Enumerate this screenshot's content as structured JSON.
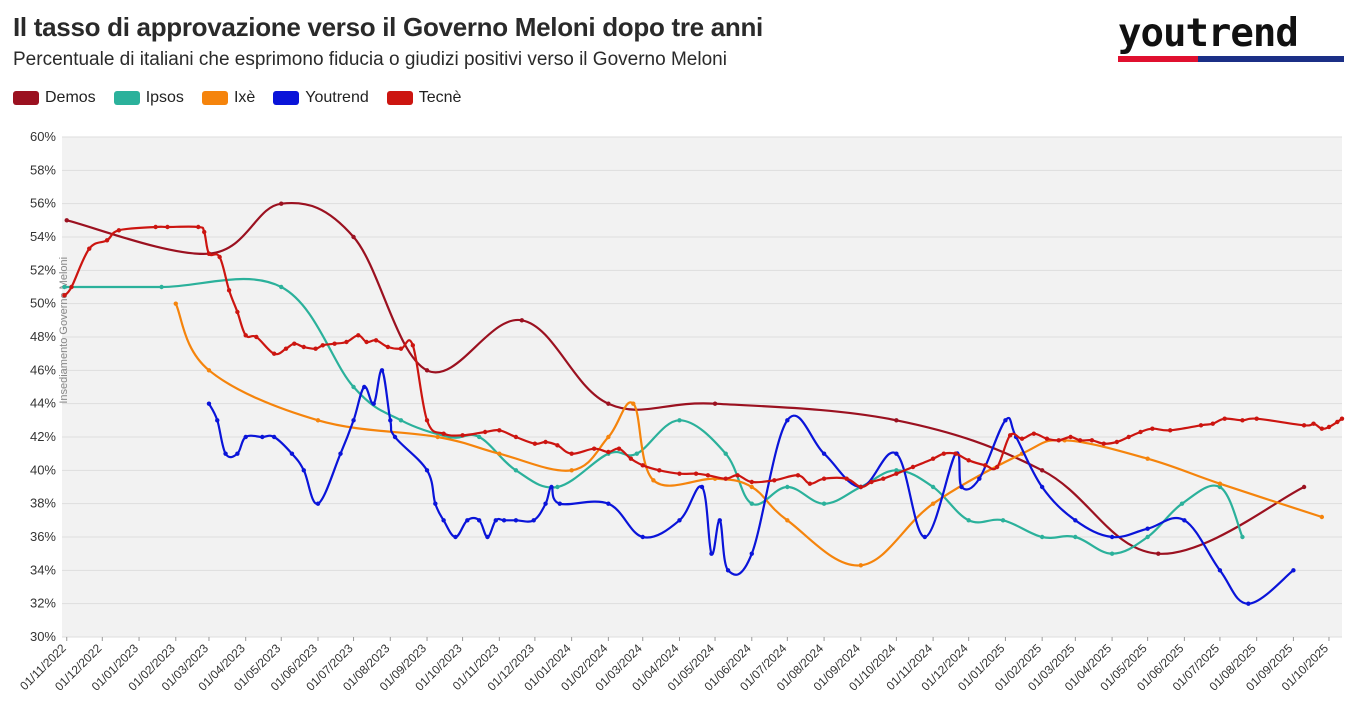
{
  "header": {
    "title": "Il tasso di approvazione verso il Governo Meloni dopo tre anni",
    "subtitle": "Percentuale di italiani che esprimono fiducia o giudizi positivi verso il Governo Meloni",
    "brand": "youtrend"
  },
  "colors": {
    "Demos": "#9b1120",
    "Ipsos": "#2bb19b",
    "Ixè": "#f5840c",
    "Youtrend": "#0a14d9",
    "Tecnè": "#cc1510",
    "brand_red": "#e0102f",
    "brand_blue": "#1b2f86"
  },
  "chart_data": {
    "type": "line",
    "title": "Il tasso di approvazione verso il Governo Meloni dopo tre anni",
    "subtitle": "Percentuale di italiani che esprimono fiducia o giudizi positivi verso il Governo Meloni",
    "ylim": [
      30,
      60
    ],
    "y_ticks": [
      "30%",
      "32%",
      "34%",
      "36%",
      "38%",
      "40%",
      "42%",
      "44%",
      "46%",
      "48%",
      "50%",
      "52%",
      "54%",
      "56%",
      "58%",
      "60%"
    ],
    "x_ticks": [
      "01/11/2022",
      "01/12/2022",
      "01/01/2023",
      "01/02/2023",
      "01/03/2023",
      "01/04/2023",
      "01/05/2023",
      "01/06/2023",
      "01/07/2023",
      "01/08/2023",
      "01/09/2023",
      "01/10/2023",
      "01/11/2023",
      "01/12/2023",
      "01/01/2024",
      "01/02/2024",
      "01/03/2024",
      "01/04/2024",
      "01/05/2024",
      "01/06/2024",
      "01/07/2024",
      "01/08/2024",
      "01/09/2024",
      "01/10/2024",
      "01/11/2024",
      "01/12/2024",
      "01/01/2025",
      "01/02/2025",
      "01/03/2025",
      "01/04/2025",
      "01/05/2025",
      "01/06/2025",
      "01/07/2025",
      "01/08/2025",
      "01/09/2025",
      "01/10/2025"
    ],
    "xlim": [
      "2022-10-28",
      "2025-10-12"
    ],
    "grid": true,
    "legend": "top-left",
    "annotation": {
      "date": "2022-10-22",
      "label": "Insediamento Governo Meloni"
    },
    "series": [
      {
        "name": "Demos",
        "points": [
          [
            "2022-11-01",
            55
          ],
          [
            "2023-03-01",
            53
          ],
          [
            "2023-05-01",
            56
          ],
          [
            "2023-07-01",
            54
          ],
          [
            "2023-09-01",
            46
          ],
          [
            "2023-11-20",
            49
          ],
          [
            "2024-02-01",
            44
          ],
          [
            "2024-05-01",
            44
          ],
          [
            "2024-10-01",
            43
          ],
          [
            "2025-02-01",
            40
          ],
          [
            "2025-05-10",
            35
          ],
          [
            "2025-09-10",
            39
          ]
        ]
      },
      {
        "name": "Ipsos",
        "points": [
          [
            "2022-10-30",
            51
          ],
          [
            "2023-01-20",
            51
          ],
          [
            "2023-05-01",
            51
          ],
          [
            "2023-07-01",
            45
          ],
          [
            "2023-08-10",
            43
          ],
          [
            "2023-09-20",
            42
          ],
          [
            "2023-10-15",
            42
          ],
          [
            "2023-11-15",
            40
          ],
          [
            "2023-12-20",
            39
          ],
          [
            "2024-02-01",
            41
          ],
          [
            "2024-02-25",
            41
          ],
          [
            "2024-04-01",
            43
          ],
          [
            "2024-05-10",
            41
          ],
          [
            "2024-06-01",
            38
          ],
          [
            "2024-07-01",
            39
          ],
          [
            "2024-08-01",
            38
          ],
          [
            "2024-09-01",
            39
          ],
          [
            "2024-10-01",
            40
          ],
          [
            "2024-11-01",
            39
          ],
          [
            "2024-12-01",
            37
          ],
          [
            "2024-12-30",
            37
          ],
          [
            "2025-02-01",
            36
          ],
          [
            "2025-03-01",
            36
          ],
          [
            "2025-04-01",
            35
          ],
          [
            "2025-05-01",
            36
          ],
          [
            "2025-05-30",
            38
          ],
          [
            "2025-07-01",
            39
          ],
          [
            "2025-07-20",
            36
          ]
        ]
      },
      {
        "name": "Ixè",
        "points": [
          [
            "2023-02-01",
            50
          ],
          [
            "2023-03-01",
            46
          ],
          [
            "2023-06-01",
            43
          ],
          [
            "2023-09-10",
            42
          ],
          [
            "2023-11-01",
            41
          ],
          [
            "2024-01-01",
            40
          ],
          [
            "2024-02-01",
            42
          ],
          [
            "2024-02-22",
            44
          ],
          [
            "2024-03-10",
            39.4
          ],
          [
            "2024-05-01",
            39.5
          ],
          [
            "2024-06-01",
            39
          ],
          [
            "2024-07-01",
            37
          ],
          [
            "2024-09-01",
            34.3
          ],
          [
            "2024-11-01",
            38
          ],
          [
            "2025-01-15",
            41
          ],
          [
            "2025-02-20",
            41.8
          ],
          [
            "2025-05-01",
            40.7
          ],
          [
            "2025-07-01",
            39.2
          ],
          [
            "2025-09-25",
            37.2
          ]
        ]
      },
      {
        "name": "Youtrend",
        "points": [
          [
            "2023-03-01",
            44
          ],
          [
            "2023-03-08",
            43
          ],
          [
            "2023-03-15",
            41
          ],
          [
            "2023-03-25",
            41
          ],
          [
            "2023-04-01",
            42
          ],
          [
            "2023-04-15",
            42
          ],
          [
            "2023-04-25",
            42
          ],
          [
            "2023-05-10",
            41
          ],
          [
            "2023-05-20",
            40
          ],
          [
            "2023-06-01",
            38
          ],
          [
            "2023-06-20",
            41
          ],
          [
            "2023-07-01",
            43
          ],
          [
            "2023-07-10",
            45
          ],
          [
            "2023-07-18",
            44
          ],
          [
            "2023-07-25",
            46
          ],
          [
            "2023-08-01",
            43
          ],
          [
            "2023-08-05",
            42
          ],
          [
            "2023-09-01",
            40
          ],
          [
            "2023-09-08",
            38
          ],
          [
            "2023-09-15",
            37
          ],
          [
            "2023-09-25",
            36
          ],
          [
            "2023-10-05",
            37
          ],
          [
            "2023-10-15",
            37
          ],
          [
            "2023-10-22",
            36
          ],
          [
            "2023-10-29",
            37
          ],
          [
            "2023-11-05",
            37
          ],
          [
            "2023-11-15",
            37
          ],
          [
            "2023-11-30",
            37
          ],
          [
            "2023-12-10",
            38
          ],
          [
            "2023-12-15",
            39
          ],
          [
            "2023-12-22",
            38
          ],
          [
            "2024-02-01",
            38
          ],
          [
            "2024-03-01",
            36
          ],
          [
            "2024-04-01",
            37
          ],
          [
            "2024-04-20",
            39
          ],
          [
            "2024-04-28",
            35
          ],
          [
            "2024-05-05",
            37
          ],
          [
            "2024-05-12",
            34
          ],
          [
            "2024-06-01",
            35
          ],
          [
            "2024-07-01",
            43
          ],
          [
            "2024-08-01",
            41
          ],
          [
            "2024-09-01",
            39
          ],
          [
            "2024-10-01",
            41
          ],
          [
            "2024-10-25",
            36
          ],
          [
            "2024-11-20",
            41
          ],
          [
            "2024-11-25",
            39
          ],
          [
            "2024-12-10",
            39.5
          ],
          [
            "2025-01-01",
            43
          ],
          [
            "2025-01-10",
            42
          ],
          [
            "2025-02-01",
            39
          ],
          [
            "2025-03-01",
            37
          ],
          [
            "2025-04-01",
            36
          ],
          [
            "2025-05-01",
            36.5
          ],
          [
            "2025-06-01",
            37
          ],
          [
            "2025-07-01",
            34
          ],
          [
            "2025-07-25",
            32
          ],
          [
            "2025-09-01",
            34
          ]
        ]
      },
      {
        "name": "Tecnè",
        "points": [
          [
            "2022-10-30",
            50.5
          ],
          [
            "2022-11-05",
            51
          ],
          [
            "2022-11-20",
            53.3
          ],
          [
            "2022-12-05",
            53.8
          ],
          [
            "2022-12-15",
            54.4
          ],
          [
            "2023-01-15",
            54.6
          ],
          [
            "2023-01-25",
            54.6
          ],
          [
            "2023-02-20",
            54.6
          ],
          [
            "2023-02-25",
            54.3
          ],
          [
            "2023-03-01",
            53
          ],
          [
            "2023-03-10",
            52.8
          ],
          [
            "2023-03-18",
            50.8
          ],
          [
            "2023-03-25",
            49.5
          ],
          [
            "2023-04-01",
            48.1
          ],
          [
            "2023-04-10",
            48
          ],
          [
            "2023-04-25",
            47
          ],
          [
            "2023-05-05",
            47.3
          ],
          [
            "2023-05-12",
            47.6
          ],
          [
            "2023-05-20",
            47.4
          ],
          [
            "2023-05-30",
            47.3
          ],
          [
            "2023-06-05",
            47.5
          ],
          [
            "2023-06-15",
            47.6
          ],
          [
            "2023-06-25",
            47.7
          ],
          [
            "2023-07-05",
            48.1
          ],
          [
            "2023-07-12",
            47.7
          ],
          [
            "2023-07-20",
            47.8
          ],
          [
            "2023-07-30",
            47.4
          ],
          [
            "2023-08-10",
            47.3
          ],
          [
            "2023-08-20",
            47.5
          ],
          [
            "2023-09-01",
            43
          ],
          [
            "2023-09-15",
            42.2
          ],
          [
            "2023-10-01",
            42.1
          ],
          [
            "2023-10-20",
            42.3
          ],
          [
            "2023-11-01",
            42.4
          ],
          [
            "2023-11-15",
            42
          ],
          [
            "2023-12-01",
            41.6
          ],
          [
            "2023-12-10",
            41.7
          ],
          [
            "2023-12-20",
            41.5
          ],
          [
            "2024-01-01",
            41
          ],
          [
            "2024-01-20",
            41.3
          ],
          [
            "2024-02-01",
            41.1
          ],
          [
            "2024-02-10",
            41.3
          ],
          [
            "2024-02-20",
            40.7
          ],
          [
            "2024-03-01",
            40.3
          ],
          [
            "2024-03-15",
            40
          ],
          [
            "2024-04-01",
            39.8
          ],
          [
            "2024-04-15",
            39.8
          ],
          [
            "2024-04-25",
            39.7
          ],
          [
            "2024-05-10",
            39.5
          ],
          [
            "2024-05-20",
            39.7
          ],
          [
            "2024-06-01",
            39.3
          ],
          [
            "2024-06-20",
            39.4
          ],
          [
            "2024-07-10",
            39.7
          ],
          [
            "2024-07-20",
            39.2
          ],
          [
            "2024-08-01",
            39.5
          ],
          [
            "2024-08-20",
            39.5
          ],
          [
            "2024-09-01",
            39
          ],
          [
            "2024-09-10",
            39.3
          ],
          [
            "2024-09-20",
            39.5
          ],
          [
            "2024-10-01",
            39.8
          ],
          [
            "2024-10-15",
            40.2
          ],
          [
            "2024-11-01",
            40.7
          ],
          [
            "2024-11-10",
            41
          ],
          [
            "2024-11-20",
            41
          ],
          [
            "2024-12-01",
            40.6
          ],
          [
            "2024-12-15",
            40.3
          ],
          [
            "2024-12-25",
            40.2
          ],
          [
            "2025-01-05",
            42.1
          ],
          [
            "2025-01-15",
            41.9
          ],
          [
            "2025-01-25",
            42.2
          ],
          [
            "2025-02-05",
            41.9
          ],
          [
            "2025-02-15",
            41.8
          ],
          [
            "2025-02-25",
            42
          ],
          [
            "2025-03-05",
            41.8
          ],
          [
            "2025-03-15",
            41.8
          ],
          [
            "2025-03-25",
            41.6
          ],
          [
            "2025-04-05",
            41.7
          ],
          [
            "2025-04-15",
            42
          ],
          [
            "2025-04-25",
            42.3
          ],
          [
            "2025-05-05",
            42.5
          ],
          [
            "2025-05-20",
            42.4
          ],
          [
            "2025-06-15",
            42.7
          ],
          [
            "2025-06-25",
            42.8
          ],
          [
            "2025-07-05",
            43.1
          ],
          [
            "2025-07-20",
            43
          ],
          [
            "2025-08-01",
            43.1
          ],
          [
            "2025-09-10",
            42.7
          ],
          [
            "2025-09-18",
            42.8
          ],
          [
            "2025-09-25",
            42.5
          ],
          [
            "2025-10-01",
            42.6
          ],
          [
            "2025-10-08",
            42.9
          ],
          [
            "2025-10-12",
            43.1
          ]
        ]
      }
    ]
  }
}
